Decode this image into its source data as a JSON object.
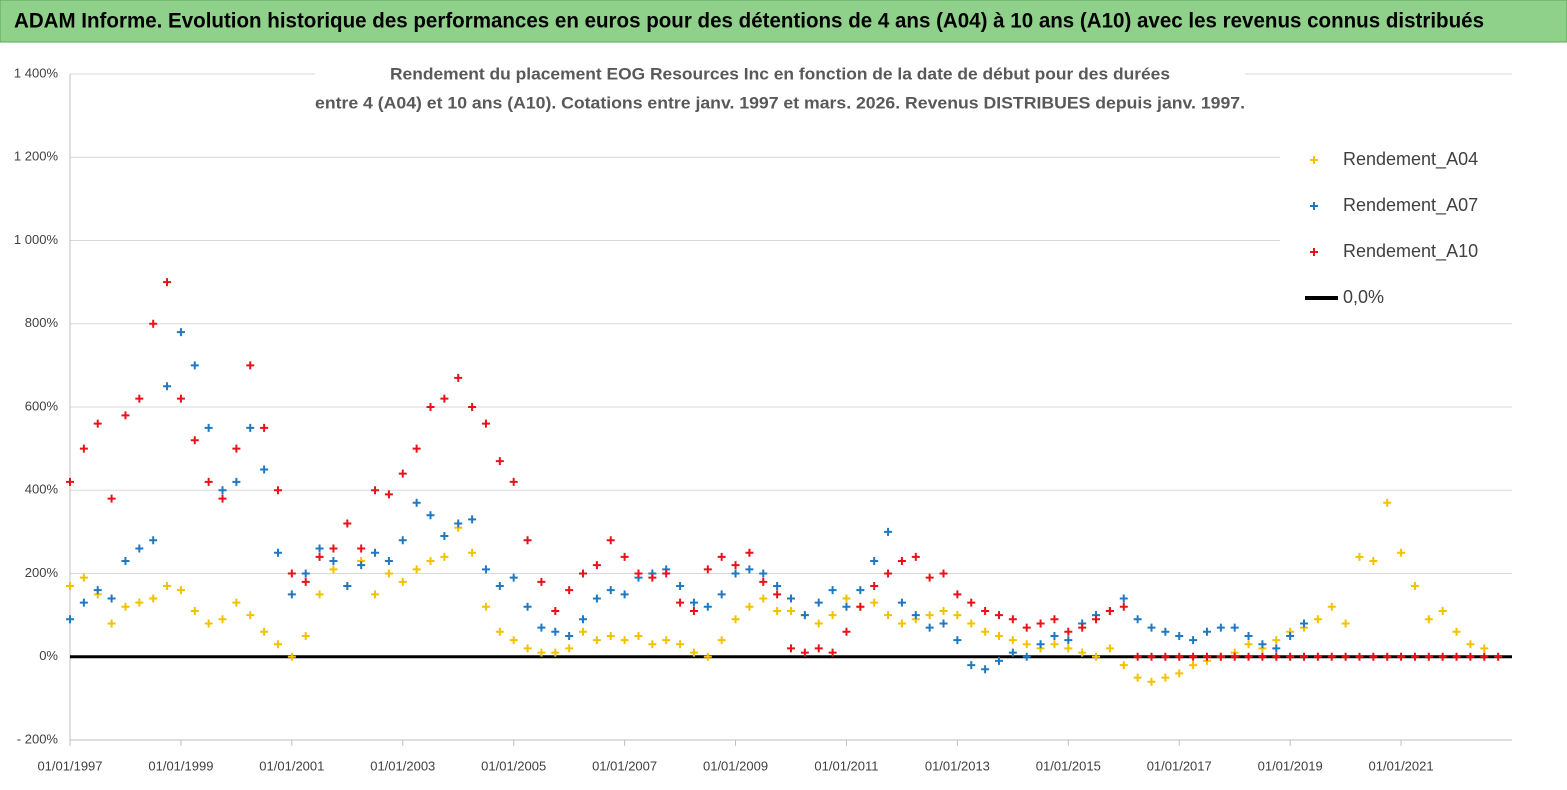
{
  "header": {
    "title": "ADAM Informe. Evolution historique des performances en euros pour des détentions de 4 ans (A04) à 10 ans (A10) avec les revenus connus distribués"
  },
  "chart_data": {
    "type": "scatter",
    "title": [
      "Rendement du placement EOG Resources Inc en fonction de la date de début pour des durées",
      "entre 4 (A04) et 10 ans (A10).  Cotations entre janv. 1997 et mars. 2026. Revenus DISTRIBUES depuis janv. 1997."
    ],
    "xlim": [
      1997,
      2023
    ],
    "xticks": [
      {
        "value": 1997,
        "label": "01/01/1997"
      },
      {
        "value": 1999,
        "label": "01/01/1999"
      },
      {
        "value": 2001,
        "label": "01/01/2001"
      },
      {
        "value": 2003,
        "label": "01/01/2003"
      },
      {
        "value": 2005,
        "label": "01/01/2005"
      },
      {
        "value": 2007,
        "label": "01/01/2007"
      },
      {
        "value": 2009,
        "label": "01/01/2009"
      },
      {
        "value": 2011,
        "label": "01/01/2011"
      },
      {
        "value": 2013,
        "label": "01/01/2013"
      },
      {
        "value": 2015,
        "label": "01/01/2015"
      },
      {
        "value": 2017,
        "label": "01/01/2017"
      },
      {
        "value": 2019,
        "label": "01/01/2019"
      },
      {
        "value": 2021,
        "label": "01/01/2021"
      }
    ],
    "ylim": [
      -200,
      1400
    ],
    "yticks": [
      {
        "value": -200,
        "label": "- 200%"
      },
      {
        "value": 0,
        "label": "0%"
      },
      {
        "value": 200,
        "label": "200%"
      },
      {
        "value": 400,
        "label": "400%"
      },
      {
        "value": 600,
        "label": "600%"
      },
      {
        "value": 800,
        "label": "800%"
      },
      {
        "value": 1000,
        "label": "1 000%"
      },
      {
        "value": 1200,
        "label": "1 200%"
      },
      {
        "value": 1400,
        "label": "1 400%"
      }
    ],
    "grid": true,
    "legend": "upper right",
    "x": [
      1997,
      1997.25,
      1997.5,
      1997.75,
      1998,
      1998.25,
      1998.5,
      1998.75,
      1999,
      1999.25,
      1999.5,
      1999.75,
      2000,
      2000.25,
      2000.5,
      2000.75,
      2001,
      2001.25,
      2001.5,
      2001.75,
      2002,
      2002.25,
      2002.5,
      2002.75,
      2003,
      2003.25,
      2003.5,
      2003.75,
      2004,
      2004.25,
      2004.5,
      2004.75,
      2005,
      2005.25,
      2005.5,
      2005.75,
      2006,
      2006.25,
      2006.5,
      2006.75,
      2007,
      2007.25,
      2007.5,
      2007.75,
      2008,
      2008.25,
      2008.5,
      2008.75,
      2009,
      2009.25,
      2009.5,
      2009.75,
      2010,
      2010.25,
      2010.5,
      2010.75,
      2011,
      2011.25,
      2011.5,
      2011.75,
      2012,
      2012.25,
      2012.5,
      2012.75,
      2013,
      2013.25,
      2013.5,
      2013.75,
      2014,
      2014.25,
      2014.5,
      2014.75,
      2015,
      2015.25,
      2015.5,
      2015.75,
      2016,
      2016.25,
      2016.5,
      2016.75,
      2017,
      2017.25,
      2017.5,
      2017.75,
      2018,
      2018.25,
      2018.5,
      2018.75,
      2019,
      2019.25,
      2019.5,
      2019.75,
      2020,
      2020.25,
      2020.5,
      2020.75,
      2021,
      2021.25,
      2021.5,
      2021.75,
      2022,
      2022.25,
      2022.5,
      2022.75
    ],
    "series": [
      {
        "name": "Rendement_A04",
        "color": "#f2c200",
        "values": [
          170,
          190,
          150,
          80,
          120,
          130,
          140,
          170,
          160,
          110,
          80,
          90,
          130,
          100,
          60,
          30,
          0,
          50,
          150,
          210,
          170,
          230,
          150,
          200,
          180,
          210,
          230,
          240,
          310,
          250,
          120,
          60,
          40,
          20,
          10,
          10,
          20,
          60,
          40,
          50,
          40,
          50,
          30,
          40,
          30,
          10,
          0,
          40,
          90,
          120,
          140,
          110,
          110,
          100,
          80,
          100,
          140,
          120,
          130,
          100,
          80,
          90,
          100,
          110,
          100,
          80,
          60,
          50,
          40,
          30,
          20,
          30,
          20,
          10,
          0,
          20,
          -20,
          -50,
          -60,
          -50,
          -40,
          -20,
          -10,
          0,
          10,
          30,
          20,
          40,
          60,
          70,
          90,
          120,
          80,
          240,
          230,
          370,
          250,
          170,
          90,
          110,
          60,
          30,
          20,
          null
        ]
      },
      {
        "name": "Rendement_A07",
        "color": "#1f78c1",
        "values": [
          90,
          130,
          160,
          140,
          230,
          260,
          280,
          650,
          780,
          700,
          550,
          400,
          420,
          550,
          450,
          250,
          150,
          200,
          260,
          230,
          170,
          220,
          250,
          230,
          280,
          370,
          340,
          290,
          320,
          330,
          210,
          170,
          190,
          120,
          70,
          60,
          50,
          90,
          140,
          160,
          150,
          190,
          200,
          210,
          170,
          130,
          120,
          150,
          200,
          210,
          200,
          170,
          140,
          100,
          130,
          160,
          120,
          160,
          230,
          300,
          130,
          100,
          70,
          80,
          40,
          -20,
          -30,
          -10,
          10,
          0,
          30,
          50,
          40,
          80,
          100,
          110,
          140,
          90,
          70,
          60,
          50,
          40,
          60,
          70,
          70,
          50,
          30,
          20,
          50,
          80,
          null,
          null,
          null,
          null,
          null,
          null,
          null,
          null,
          null,
          null,
          null,
          null,
          null,
          null
        ]
      },
      {
        "name": "Rendement_A10",
        "color": "#e8121b",
        "values": [
          420,
          500,
          560,
          380,
          580,
          620,
          800,
          900,
          620,
          520,
          420,
          380,
          500,
          700,
          550,
          400,
          200,
          180,
          240,
          260,
          320,
          260,
          400,
          390,
          440,
          500,
          600,
          620,
          670,
          600,
          560,
          470,
          420,
          280,
          180,
          110,
          160,
          200,
          220,
          280,
          240,
          200,
          190,
          200,
          130,
          110,
          210,
          240,
          220,
          250,
          180,
          150,
          20,
          10,
          20,
          10,
          60,
          120,
          170,
          200,
          230,
          240,
          190,
          200,
          150,
          130,
          110,
          100,
          90,
          70,
          80,
          90,
          60,
          70,
          90,
          110,
          120,
          0,
          0,
          0,
          0,
          0,
          0,
          0,
          0,
          0,
          0,
          0,
          0,
          0,
          0,
          0,
          0,
          0,
          0,
          0,
          0,
          0,
          0,
          0,
          0,
          0,
          0,
          0
        ]
      }
    ],
    "reference_line": {
      "name": "0,0%",
      "value": 0,
      "color": "#000000"
    }
  }
}
